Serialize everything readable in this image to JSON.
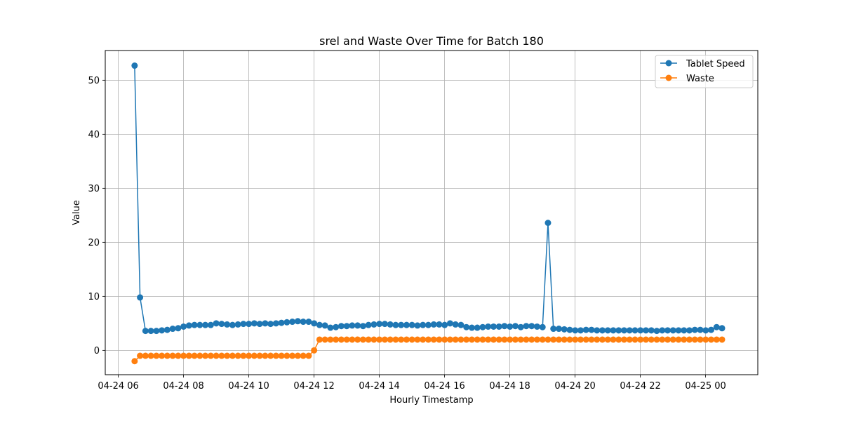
{
  "chart_data": {
    "type": "line",
    "title": "srel and Waste Over Time for Batch 180",
    "xlabel": "Hourly Timestamp",
    "ylabel": "Value",
    "x_tick_labels": [
      "04-24 06",
      "04-24 08",
      "04-24 10",
      "04-24 12",
      "04-24 14",
      "04-24 16",
      "04-24 18",
      "04-24 20",
      "04-24 22",
      "04-25 00"
    ],
    "x_tick_hours": [
      6,
      8,
      10,
      12,
      14,
      16,
      18,
      20,
      22,
      24
    ],
    "xlim_hours": [
      5.6,
      25.6
    ],
    "x_start_hour": 6.5,
    "x_step_hours": 0.1667,
    "ylim": [
      -4.5,
      55.5
    ],
    "y_ticks": [
      0,
      10,
      20,
      30,
      40,
      50
    ],
    "grid": true,
    "legend_location": "upper right",
    "series": [
      {
        "name": "Tablet Speed",
        "color": "#1f77b4",
        "values": [
          52.7,
          9.8,
          3.6,
          3.6,
          3.6,
          3.7,
          3.8,
          4.0,
          4.1,
          4.4,
          4.6,
          4.7,
          4.7,
          4.7,
          4.7,
          5.0,
          4.9,
          4.8,
          4.7,
          4.8,
          4.9,
          4.9,
          5.0,
          4.9,
          5.0,
          4.9,
          5.0,
          5.1,
          5.2,
          5.3,
          5.4,
          5.3,
          5.3,
          5.0,
          4.7,
          4.6,
          4.2,
          4.3,
          4.5,
          4.5,
          4.6,
          4.6,
          4.5,
          4.7,
          4.8,
          4.9,
          4.9,
          4.8,
          4.7,
          4.7,
          4.7,
          4.7,
          4.6,
          4.7,
          4.7,
          4.8,
          4.8,
          4.7,
          5.0,
          4.8,
          4.7,
          4.3,
          4.2,
          4.2,
          4.3,
          4.4,
          4.4,
          4.4,
          4.5,
          4.4,
          4.5,
          4.3,
          4.5,
          4.5,
          4.4,
          4.3,
          23.6,
          4.0,
          4.0,
          3.9,
          3.8,
          3.7,
          3.7,
          3.8,
          3.8,
          3.7,
          3.7,
          3.7,
          3.7,
          3.7,
          3.7,
          3.7,
          3.7,
          3.7,
          3.7,
          3.7,
          3.6,
          3.7,
          3.7,
          3.7,
          3.7,
          3.7,
          3.7,
          3.8,
          3.8,
          3.7,
          3.8,
          4.3,
          4.1
        ]
      },
      {
        "name": "Waste",
        "color": "#ff7f0e",
        "values": [
          -2.0,
          -1.0,
          -1.0,
          -1.0,
          -1.0,
          -1.0,
          -1.0,
          -1.0,
          -1.0,
          -1.0,
          -1.0,
          -1.0,
          -1.0,
          -1.0,
          -1.0,
          -1.0,
          -1.0,
          -1.0,
          -1.0,
          -1.0,
          -1.0,
          -1.0,
          -1.0,
          -1.0,
          -1.0,
          -1.0,
          -1.0,
          -1.0,
          -1.0,
          -1.0,
          -1.0,
          -1.0,
          -1.0,
          0.0,
          2.0,
          2.0,
          2.0,
          2.0,
          2.0,
          2.0,
          2.0,
          2.0,
          2.0,
          2.0,
          2.0,
          2.0,
          2.0,
          2.0,
          2.0,
          2.0,
          2.0,
          2.0,
          2.0,
          2.0,
          2.0,
          2.0,
          2.0,
          2.0,
          2.0,
          2.0,
          2.0,
          2.0,
          2.0,
          2.0,
          2.0,
          2.0,
          2.0,
          2.0,
          2.0,
          2.0,
          2.0,
          2.0,
          2.0,
          2.0,
          2.0,
          2.0,
          2.0,
          2.0,
          2.0,
          2.0,
          2.0,
          2.0,
          2.0,
          2.0,
          2.0,
          2.0,
          2.0,
          2.0,
          2.0,
          2.0,
          2.0,
          2.0,
          2.0,
          2.0,
          2.0,
          2.0,
          2.0,
          2.0,
          2.0,
          2.0,
          2.0,
          2.0,
          2.0,
          2.0,
          2.0,
          2.0,
          2.0,
          2.0,
          2.0
        ]
      }
    ]
  }
}
